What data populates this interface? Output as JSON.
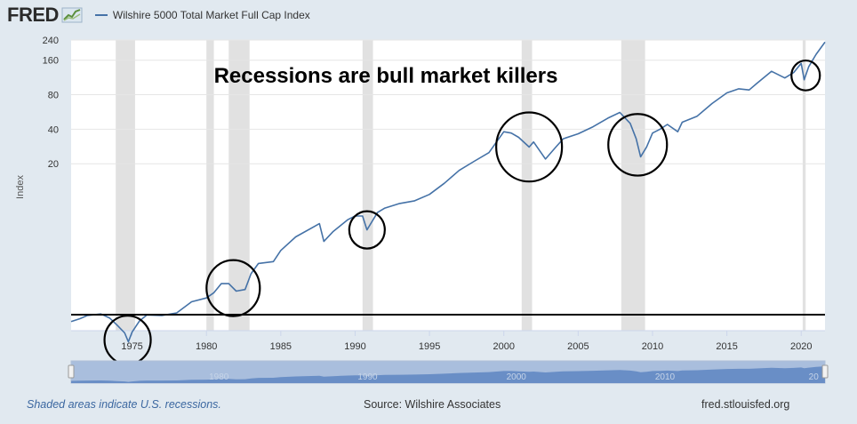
{
  "header": {
    "logo_text": "FRED",
    "legend_label": "Wilshire 5000 Total Market Full Cap Index",
    "series_color": "#4572a7"
  },
  "chart_data": {
    "type": "line",
    "title": "Recessions are bull market killers",
    "xlabel": "",
    "ylabel": "Index",
    "yscale": "log",
    "ylim": [
      0.7,
      240
    ],
    "xlim": [
      1970.9,
      2021.6
    ],
    "x_ticks": [
      1975,
      1980,
      1985,
      1990,
      1995,
      2000,
      2005,
      2010,
      2015,
      2020
    ],
    "y_ticks": [
      20,
      40,
      80,
      160,
      240
    ],
    "recessions": [
      [
        1973.9,
        1975.2
      ],
      [
        1980.0,
        1980.5
      ],
      [
        1981.5,
        1982.9
      ],
      [
        1990.5,
        1991.2
      ],
      [
        2001.2,
        2001.9
      ],
      [
        2007.9,
        2009.5
      ],
      [
        2020.1,
        2020.3
      ]
    ],
    "series": [
      {
        "name": "Wilshire 5000 Total Market Full Cap Index",
        "x": [
          1970.9,
          1971.5,
          1972.0,
          1972.9,
          1973.5,
          1974.0,
          1974.5,
          1974.75,
          1975.0,
          1975.5,
          1976.0,
          1977.0,
          1978.0,
          1979.0,
          1980.0,
          1980.5,
          1981.0,
          1981.5,
          1982.0,
          1982.6,
          1983.0,
          1983.5,
          1984.5,
          1985.0,
          1986.0,
          1987.6,
          1987.9,
          1988.5,
          1989.5,
          1990.0,
          1990.5,
          1990.8,
          1991.5,
          1992.0,
          1993.0,
          1994.0,
          1995.0,
          1996.0,
          1997.0,
          1998.0,
          1999.0,
          2000.0,
          2000.5,
          2001.0,
          2001.7,
          2002.0,
          2002.8,
          2003.5,
          2004.0,
          2005.0,
          2006.0,
          2007.0,
          2007.8,
          2008.5,
          2008.9,
          2009.2,
          2009.6,
          2010.0,
          2010.5,
          2011.0,
          2011.7,
          2012.0,
          2013.0,
          2014.0,
          2015.0,
          2015.8,
          2016.5,
          2017.0,
          2018.0,
          2018.9,
          2019.5,
          2020.0,
          2020.2,
          2020.5,
          2021.0,
          2021.6
        ],
        "values": [
          0.84,
          0.89,
          0.95,
          0.98,
          0.9,
          0.78,
          0.67,
          0.56,
          0.68,
          0.85,
          0.96,
          0.95,
          1.0,
          1.25,
          1.35,
          1.5,
          1.8,
          1.8,
          1.55,
          1.6,
          2.2,
          2.7,
          2.8,
          3.5,
          4.6,
          6.0,
          4.2,
          5.1,
          6.5,
          7.0,
          7.0,
          5.3,
          7.5,
          8.2,
          9.0,
          9.5,
          10.8,
          13.5,
          17.5,
          21.0,
          25.0,
          38.0,
          37.0,
          34.0,
          28.0,
          31.0,
          22.0,
          28.0,
          33.0,
          36.5,
          42.0,
          50.0,
          56.0,
          45.0,
          33.0,
          23.0,
          28.0,
          37.0,
          40.0,
          44.0,
          38.0,
          46.0,
          52.0,
          67.0,
          83.0,
          90.0,
          88.0,
          100.0,
          128.0,
          112.0,
          125.0,
          150.0,
          108.0,
          140.0,
          180.0,
          230.0
        ]
      }
    ],
    "annotation_circles": [
      1974.7,
      1981.8,
      1990.8,
      2001.7,
      2009.0,
      2020.3
    ]
  },
  "navigator": {
    "labels": [
      "1980",
      "1990",
      "2000",
      "2010",
      "20"
    ]
  },
  "footer": {
    "recession_note": "Shaded areas indicate U.S. recessions.",
    "source": "Source: Wilshire Associates",
    "site": "fred.stlouisfed.org"
  }
}
